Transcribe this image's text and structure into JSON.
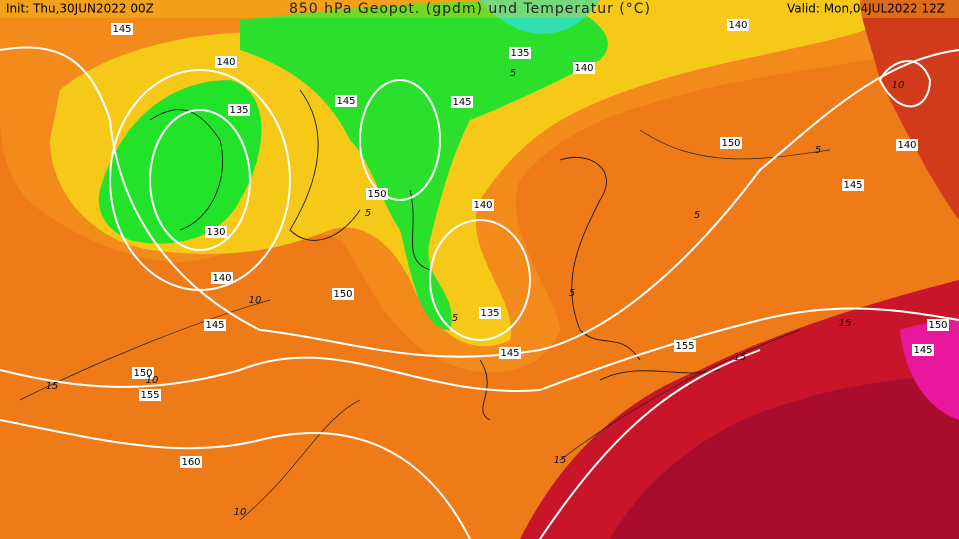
{
  "header": {
    "init": "Init: Thu,30JUN2022 00Z",
    "title": "850 hPa Geopot. (gpdm) und Temperatur (°C)",
    "valid": "Valid: Mon,04JUL2022 12Z"
  },
  "geopotential_labels": [
    145,
    140,
    135,
    130,
    140,
    145,
    150,
    155,
    160,
    150,
    145,
    150,
    145,
    135,
    140,
    140,
    135,
    145,
    140,
    150,
    140,
    145,
    155,
    150,
    145
  ],
  "temperature_labels": [
    10,
    15,
    10,
    10,
    5,
    10,
    5,
    5,
    5,
    15,
    15,
    15,
    5,
    5
  ]
}
